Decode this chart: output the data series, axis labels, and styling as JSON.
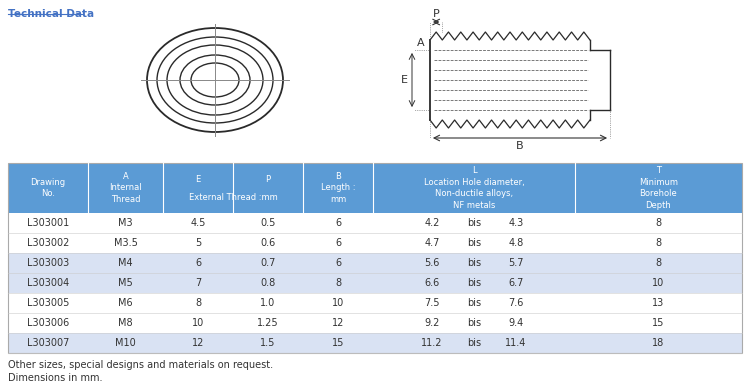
{
  "title_link": "Technical Data",
  "title_color": "#4472C4",
  "bg_color": "#ffffff",
  "header_bg": "#5B9BD5",
  "header_text_color": "#ffffff",
  "alt_row_bg": "#D9E2F3",
  "white_row_bg": "#ffffff",
  "text_color": "#333333",
  "rows": [
    [
      "L303001",
      "M3",
      "4.5",
      "0.5",
      "6",
      "4.2",
      "bis",
      "4.3",
      "8"
    ],
    [
      "L303002",
      "M3.5",
      "5",
      "0.6",
      "6",
      "4.7",
      "bis",
      "4.8",
      "8"
    ],
    [
      "L303003",
      "M4",
      "6",
      "0.7",
      "6",
      "5.6",
      "bis",
      "5.7",
      "8"
    ],
    [
      "L303004",
      "M5",
      "7",
      "0.8",
      "8",
      "6.6",
      "bis",
      "6.7",
      "10"
    ],
    [
      "L303005",
      "M6",
      "8",
      "1.0",
      "10",
      "7.5",
      "bis",
      "7.6",
      "13"
    ],
    [
      "L303006",
      "M8",
      "10",
      "1.25",
      "12",
      "9.2",
      "bis",
      "9.4",
      "15"
    ],
    [
      "L303007",
      "M10",
      "12",
      "1.5",
      "15",
      "11.2",
      "bis",
      "11.4",
      "18"
    ]
  ],
  "row_bg": [
    "#ffffff",
    "#ffffff",
    "#D9E2F3",
    "#D9E2F3",
    "#ffffff",
    "#ffffff",
    "#D9E2F3"
  ],
  "footer1": "Other sizes, special designs and materials on request.",
  "footer2": "Dimensions in mm."
}
